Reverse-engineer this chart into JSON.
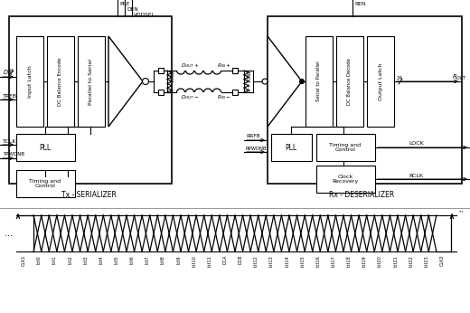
{
  "fig_width": 5.2,
  "fig_height": 3.46,
  "dpi": 100,
  "bg_color": "#ffffff",
  "signal_labels": [
    "CLK1",
    "bit0",
    "bit1",
    "bit2",
    "bit3",
    "bit4",
    "bit5",
    "bit6",
    "bit7",
    "bit8",
    "bit9",
    "bit10",
    "bit11",
    "DCA",
    "DCB",
    "bit12",
    "bit13",
    "bit14",
    "bit15",
    "bit16",
    "bit17",
    "bit18",
    "bit19",
    "bit20",
    "bit21",
    "bit22",
    "bit23",
    "CLK0"
  ]
}
